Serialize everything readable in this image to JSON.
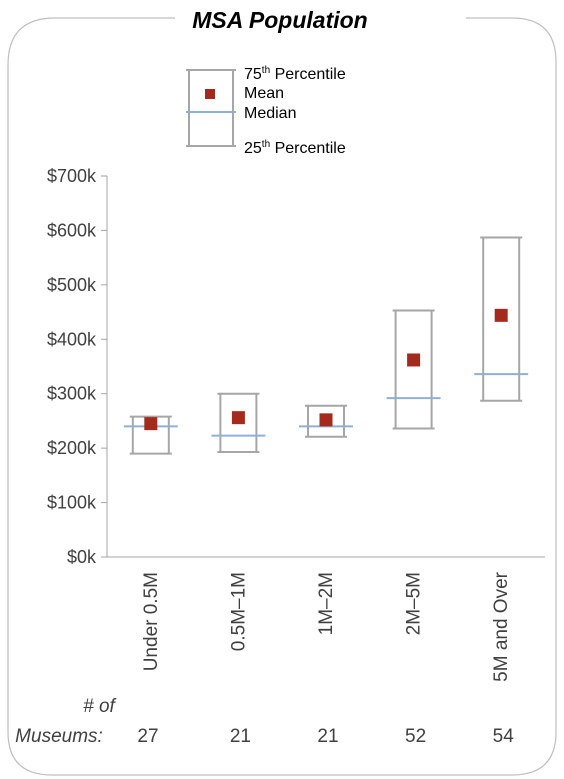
{
  "chart_data": {
    "type": "box",
    "title": "MSA Population",
    "categories": [
      "Under 0.5M",
      "0.5M–1M",
      "1M–2M",
      "2M–5M",
      "5M and Over"
    ],
    "p75": [
      258000,
      300000,
      278000,
      453000,
      587000
    ],
    "mean": [
      245000,
      256000,
      252000,
      362000,
      444000
    ],
    "median": [
      240000,
      223000,
      240000,
      292000,
      336000
    ],
    "p25": [
      190000,
      193000,
      221000,
      236000,
      287000
    ],
    "counts": [
      "27",
      "21",
      "21",
      "52",
      "54"
    ],
    "count_label_line1": "# of",
    "count_label_line2": "Museums:",
    "yticks": [
      "$0k",
      "$100k",
      "$200k",
      "$300k",
      "$400k",
      "$500k",
      "$600k",
      "$700k"
    ],
    "ylim": [
      0,
      700000
    ],
    "legend": {
      "p75_base": "75",
      "p75_sup": "th",
      "p75_rest": " Percentile",
      "mean": "Mean",
      "median": "Median",
      "p25_base": "25",
      "p25_sup": "th",
      "p25_rest": " Percentile"
    },
    "colors": {
      "whisker": "#a6a6a6",
      "mean": "#a52a1e",
      "median": "#8fb0d6",
      "text": "#404040",
      "border": "#bfbfbf"
    }
  }
}
